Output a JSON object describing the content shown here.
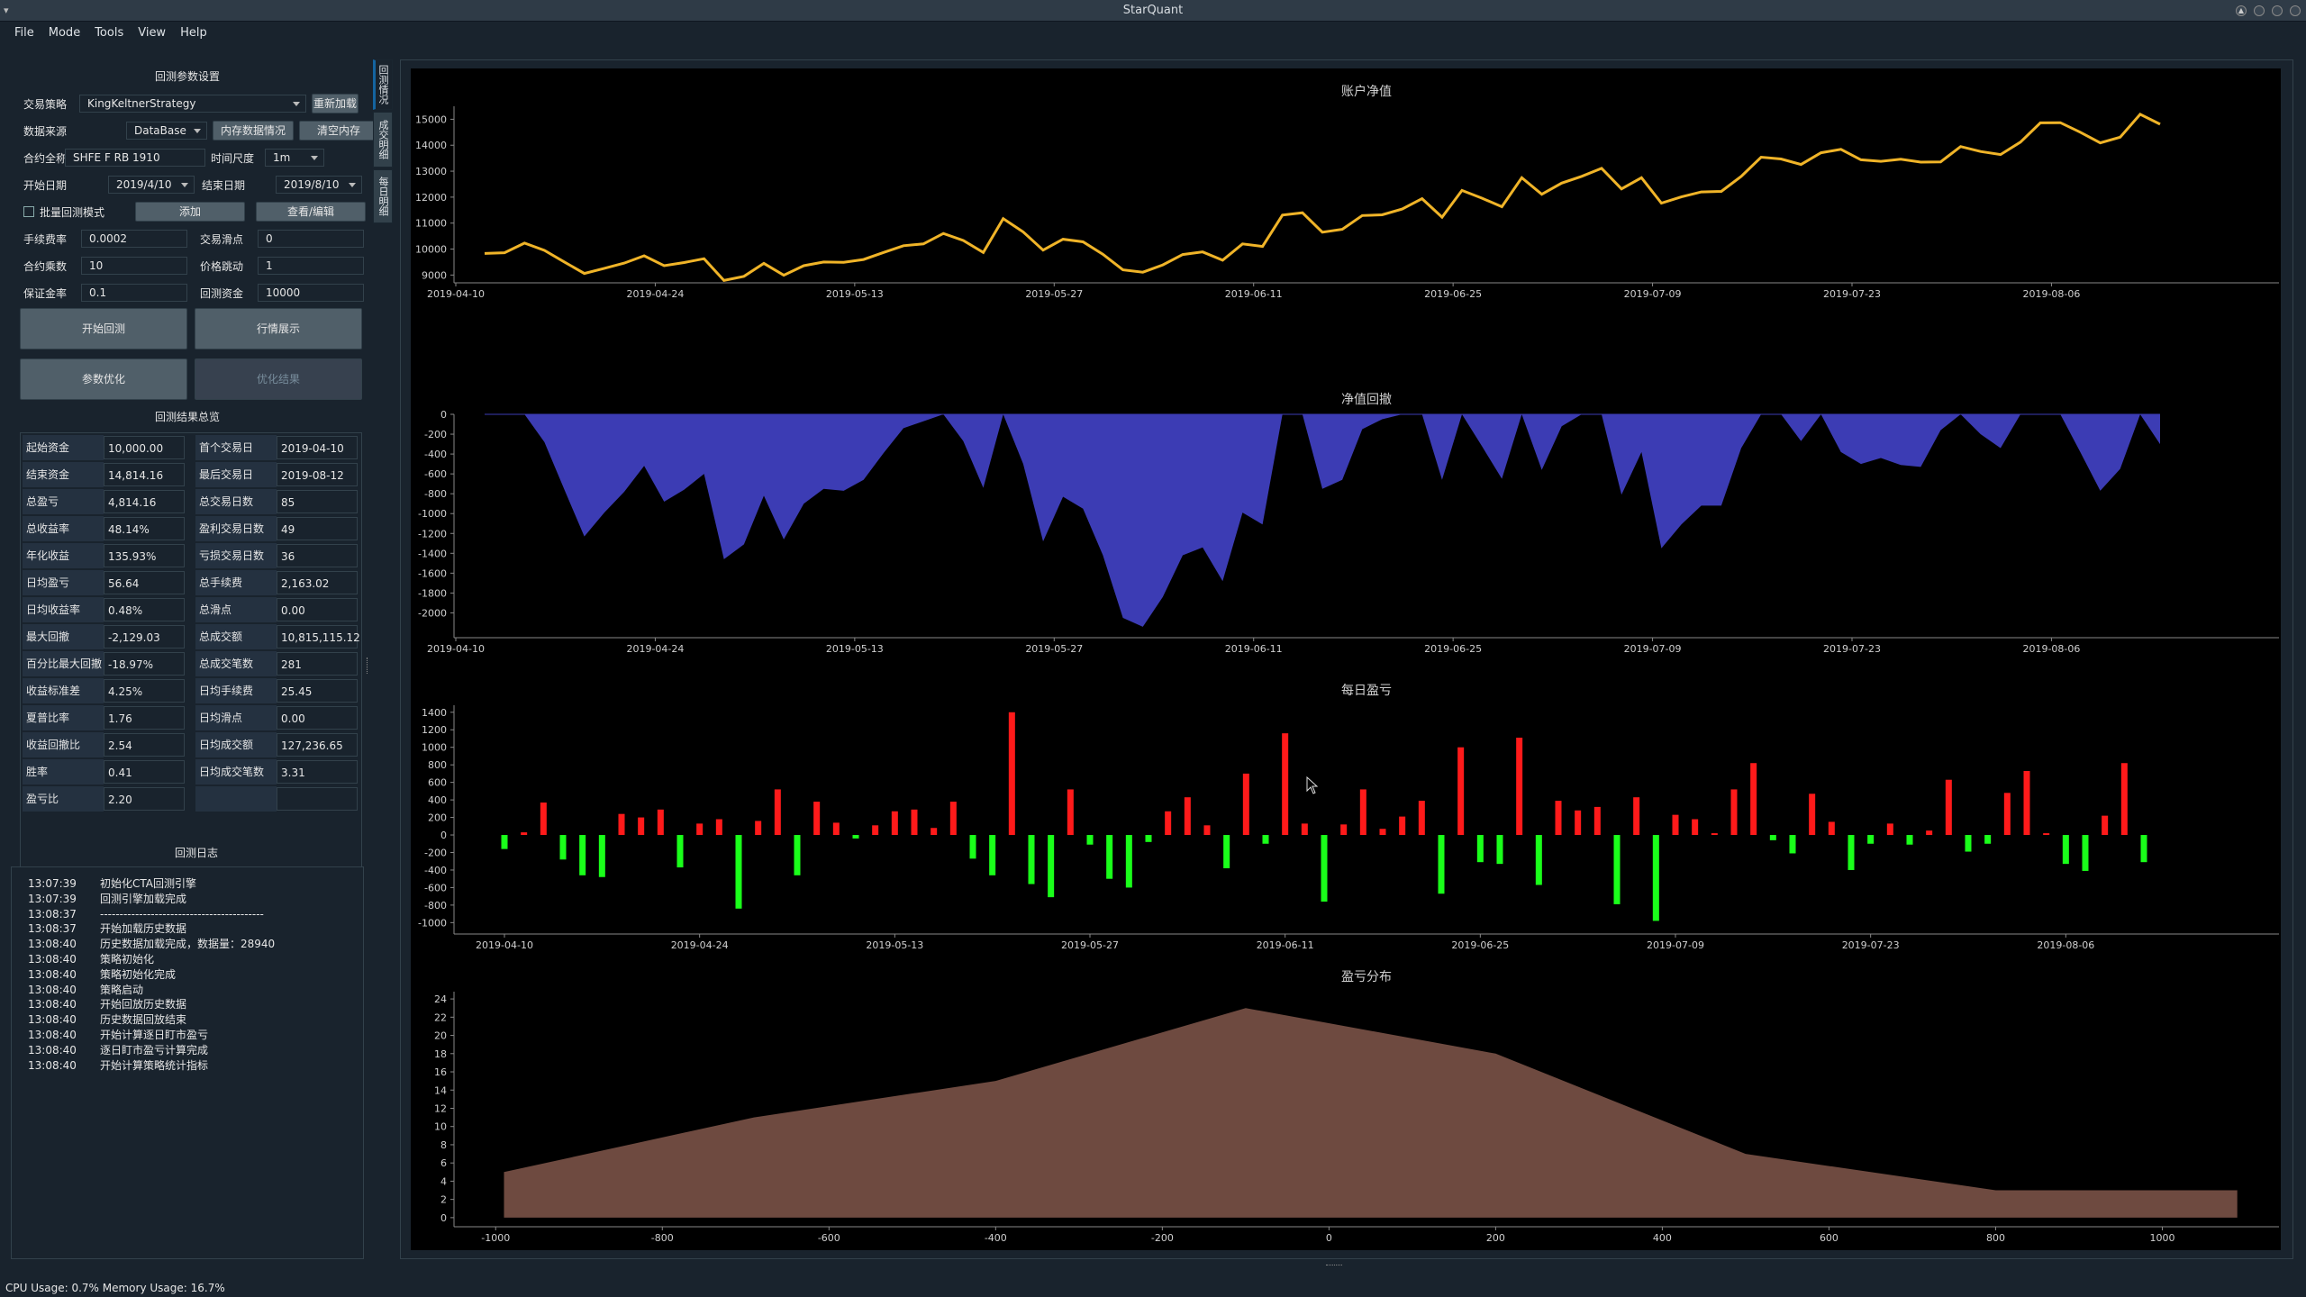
{
  "window": {
    "title": "StarQuant"
  },
  "menu": [
    "File",
    "Mode",
    "Tools",
    "View",
    "Help"
  ],
  "params": {
    "section_title": "回测参数设置",
    "strategy_label": "交易策略",
    "strategy_value": "KingKeltnerStrategy",
    "reload_btn": "重新加载",
    "datasource_label": "数据来源",
    "datasource_value": "DataBase",
    "memdata_btn": "内存数据情况",
    "clearmem_btn": "清空内存",
    "contract_label": "合约全称",
    "contract_value": "SHFE F RB 1910",
    "timescale_label": "时间尺度",
    "timescale_value": "1m",
    "start_label": "开始日期",
    "start_value": "2019/4/10",
    "end_label": "结束日期",
    "end_value": "2019/8/10",
    "batch_label": "批量回测模式",
    "add_btn": "添加",
    "view_btn": "查看/编辑",
    "fee_label": "手续费率",
    "fee_value": "0.0002",
    "slip_label": "交易滑点",
    "slip_value": "0",
    "size_label": "合约乘数",
    "size_value": "10",
    "tick_label": "价格跳动",
    "tick_value": "1",
    "margin_label": "保证金率",
    "margin_value": "0.1",
    "capital_label": "回测资金",
    "capital_value": "10000",
    "start_bt_btn": "开始回测",
    "market_btn": "行情展示",
    "optimize_btn": "参数优化",
    "opt_result_btn": "优化结果"
  },
  "results": {
    "section_title": "回测结果总览",
    "left": [
      {
        "k": "起始资金",
        "v": "10,000.00"
      },
      {
        "k": "结束资金",
        "v": "14,814.16"
      },
      {
        "k": "总盈亏",
        "v": "4,814.16"
      },
      {
        "k": "总收益率",
        "v": "48.14%"
      },
      {
        "k": "年化收益",
        "v": "135.93%"
      },
      {
        "k": "日均盈亏",
        "v": "56.64"
      },
      {
        "k": "日均收益率",
        "v": "0.48%"
      },
      {
        "k": "最大回撤",
        "v": "-2,129.03"
      },
      {
        "k": "百分比最大回撤",
        "v": "-18.97%"
      },
      {
        "k": "收益标准差",
        "v": "4.25%"
      },
      {
        "k": "夏普比率",
        "v": "1.76"
      },
      {
        "k": "收益回撤比",
        "v": "2.54"
      },
      {
        "k": "胜率",
        "v": "0.41"
      },
      {
        "k": "盈亏比",
        "v": "2.20"
      }
    ],
    "right": [
      {
        "k": "首个交易日",
        "v": "2019-04-10"
      },
      {
        "k": "最后交易日",
        "v": "2019-08-12"
      },
      {
        "k": "总交易日数",
        "v": "85"
      },
      {
        "k": "盈利交易日数",
        "v": "49"
      },
      {
        "k": "亏损交易日数",
        "v": "36"
      },
      {
        "k": "总手续费",
        "v": "2,163.02"
      },
      {
        "k": "总滑点",
        "v": "0.00"
      },
      {
        "k": "总成交额",
        "v": "10,815,115.12"
      },
      {
        "k": "总成交笔数",
        "v": "281"
      },
      {
        "k": "日均手续费",
        "v": "25.45"
      },
      {
        "k": "日均滑点",
        "v": "0.00"
      },
      {
        "k": "日均成交额",
        "v": "127,236.65"
      },
      {
        "k": "日均成交笔数",
        "v": "3.31"
      },
      {
        "k": "",
        "v": ""
      }
    ]
  },
  "log": {
    "section_title": "回测日志",
    "lines": [
      {
        "t": "13:07:39",
        "m": "初始化CTA回测引擎"
      },
      {
        "t": "13:07:39",
        "m": "回测引擎加载完成"
      },
      {
        "t": "13:08:37",
        "m": "------------------------------------------"
      },
      {
        "t": "13:08:37",
        "m": "开始加载历史数据"
      },
      {
        "t": "13:08:40",
        "m": "历史数据加载完成，数据量：28940"
      },
      {
        "t": "13:08:40",
        "m": "策略初始化"
      },
      {
        "t": "13:08:40",
        "m": "策略初始化完成"
      },
      {
        "t": "13:08:40",
        "m": "策略启动"
      },
      {
        "t": "13:08:40",
        "m": "开始回放历史数据"
      },
      {
        "t": "13:08:40",
        "m": "历史数据回放结束"
      },
      {
        "t": "13:08:40",
        "m": "开始计算逐日盯市盈亏"
      },
      {
        "t": "13:08:40",
        "m": "逐日盯市盈亏计算完成"
      },
      {
        "t": "13:08:40",
        "m": "开始计算策略统计指标"
      }
    ]
  },
  "vtabs": [
    "回测情况",
    "成交明细",
    "每日明细"
  ],
  "status": "CPU Usage: 0.7% Memory Usage: 16.7%",
  "colors": {
    "equity": "#f0b428",
    "drawdown": "#3c3cb4",
    "profit": "#ff1a1a",
    "loss": "#1aff1a",
    "distribution": "#6e4a40"
  },
  "chart_data": [
    {
      "type": "line",
      "title": "账户净值",
      "x_ticks": [
        "2019-04-10",
        "2019-04-24",
        "2019-05-13",
        "2019-05-27",
        "2019-06-11",
        "2019-06-25",
        "2019-07-09",
        "2019-07-23",
        "2019-08-06"
      ],
      "y_ticks": [
        9000,
        10000,
        11000,
        12000,
        13000,
        14000,
        15000
      ],
      "ylim": [
        8700,
        15500
      ],
      "values": [
        9830,
        9860,
        10230,
        9950,
        9500,
        9060,
        9260,
        9460,
        9740,
        9360,
        9480,
        9630,
        8790,
        8950,
        9450,
        8990,
        9360,
        9500,
        9490,
        9600,
        9870,
        10130,
        10200,
        10600,
        10330,
        9870,
        11170,
        10660,
        9960,
        10380,
        10280,
        9800,
        9200,
        9110,
        9390,
        9790,
        9890,
        9570,
        10200,
        10100,
        11310,
        11400,
        10650,
        10760,
        11290,
        11320,
        11540,
        11940,
        11230,
        12260,
        11960,
        11630,
        12750,
        12110,
        12540,
        12800,
        13110,
        12320,
        12750,
        11770,
        12010,
        12200,
        12220,
        12800,
        13540,
        13470,
        13260,
        13710,
        13840,
        13440,
        13380,
        13460,
        13350,
        13360,
        13950,
        13760,
        13640,
        14120,
        14860,
        14870,
        14500,
        14090,
        14310,
        15190,
        14810
      ]
    },
    {
      "type": "area",
      "title": "净值回撤",
      "x_ticks": [
        "2019-04-10",
        "2019-04-24",
        "2019-05-13",
        "2019-05-27",
        "2019-06-11",
        "2019-06-25",
        "2019-07-09",
        "2019-07-23",
        "2019-08-06"
      ],
      "y_ticks": [
        0,
        -200,
        -400,
        -600,
        -800,
        -1000,
        -1200,
        -1400,
        -1600,
        -1800,
        -2000
      ],
      "ylim": [
        -2250,
        0
      ],
      "values": [
        0,
        0,
        0,
        -280,
        -760,
        -1230,
        -990,
        -780,
        -520,
        -880,
        -760,
        -600,
        -1460,
        -1310,
        -820,
        -1260,
        -900,
        -750,
        -770,
        -660,
        -390,
        -140,
        -70,
        0,
        -270,
        -740,
        0,
        -500,
        -1280,
        -830,
        -950,
        -1420,
        -2050,
        -2140,
        -1840,
        -1420,
        -1340,
        -1680,
        -990,
        -1110,
        0,
        0,
        -750,
        -660,
        -150,
        -50,
        0,
        0,
        -660,
        0,
        -320,
        -650,
        0,
        -560,
        -120,
        0,
        0,
        -810,
        -380,
        -1350,
        -1110,
        -920,
        -920,
        -340,
        0,
        0,
        -270,
        0,
        -380,
        -500,
        -440,
        -510,
        -530,
        -160,
        0,
        -200,
        -340,
        0,
        0,
        0,
        -380,
        -770,
        -550,
        0,
        -300
      ]
    },
    {
      "type": "bar",
      "title": "每日盈亏",
      "x_ticks": [
        "2019-04-10",
        "2019-04-24",
        "2019-05-13",
        "2019-05-27",
        "2019-06-11",
        "2019-06-25",
        "2019-07-09",
        "2019-07-23",
        "2019-08-06"
      ],
      "y_ticks": [
        1400,
        1200,
        1000,
        800,
        600,
        400,
        200,
        0,
        -200,
        -400,
        -600,
        -800,
        -1000
      ],
      "ylim": [
        -1130,
        1480
      ],
      "values": [
        -160,
        30,
        370,
        -280,
        -460,
        -480,
        240,
        200,
        290,
        -370,
        130,
        180,
        -840,
        160,
        520,
        -460,
        380,
        140,
        -40,
        110,
        270,
        290,
        80,
        380,
        -270,
        -460,
        1400,
        -560,
        -710,
        520,
        -110,
        -500,
        -600,
        -80,
        270,
        430,
        110,
        -380,
        700,
        -100,
        1160,
        130,
        -760,
        120,
        520,
        70,
        210,
        390,
        -670,
        1000,
        -310,
        -330,
        1110,
        -570,
        390,
        280,
        320,
        -790,
        430,
        -980,
        230,
        180,
        20,
        520,
        820,
        -60,
        -210,
        470,
        150,
        -400,
        -100,
        130,
        -110,
        50,
        630,
        -190,
        -100,
        480,
        730,
        20,
        -330,
        -410,
        220,
        820,
        -310
      ]
    },
    {
      "type": "area",
      "title": "盈亏分布",
      "x_ticks": [
        "-1000",
        "-800",
        "-600",
        "-400",
        "-200",
        "0",
        "200",
        "400",
        "600",
        "800",
        "1000"
      ],
      "y_ticks": [
        0,
        2,
        4,
        6,
        8,
        10,
        12,
        14,
        16,
        18,
        20,
        22,
        24
      ],
      "xlim": [
        -1050,
        1140
      ],
      "ylim": [
        -1,
        24.8
      ],
      "x": [
        -990,
        -690,
        -400,
        -100,
        200,
        500,
        800,
        1090
      ],
      "values": [
        5,
        11,
        15,
        23,
        18,
        7,
        3,
        3
      ]
    }
  ]
}
